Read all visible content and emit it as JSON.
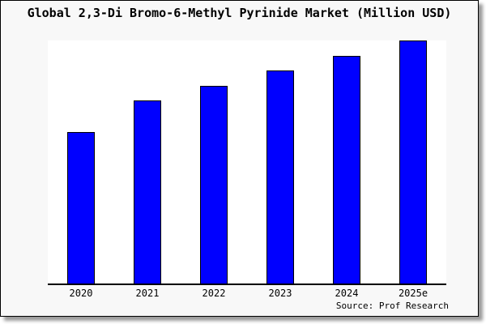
{
  "figure": {
    "background_color": "#f8f8f8",
    "plot_background_color": "#ffffff",
    "border_color": "#000000"
  },
  "chart_data": {
    "type": "bar",
    "title": "Global 2,3-Di Bromo-6-Methyl Pyrinide Market (Million USD)",
    "categories": [
      "2020",
      "2021",
      "2022",
      "2023",
      "2024",
      "2025e"
    ],
    "values": [
      62.3,
      75.3,
      81.3,
      87.7,
      93.7,
      100
    ],
    "value_scale_note": "no y-axis labels shown; values are relative bar heights normalized to 2025e = 100",
    "xlabel": "",
    "ylabel": "",
    "ylim": [
      0,
      100
    ],
    "grid": false,
    "legend": false,
    "bar_color": "#0000ff",
    "bar_border_color": "#000000",
    "source": "Source: Prof Research"
  }
}
